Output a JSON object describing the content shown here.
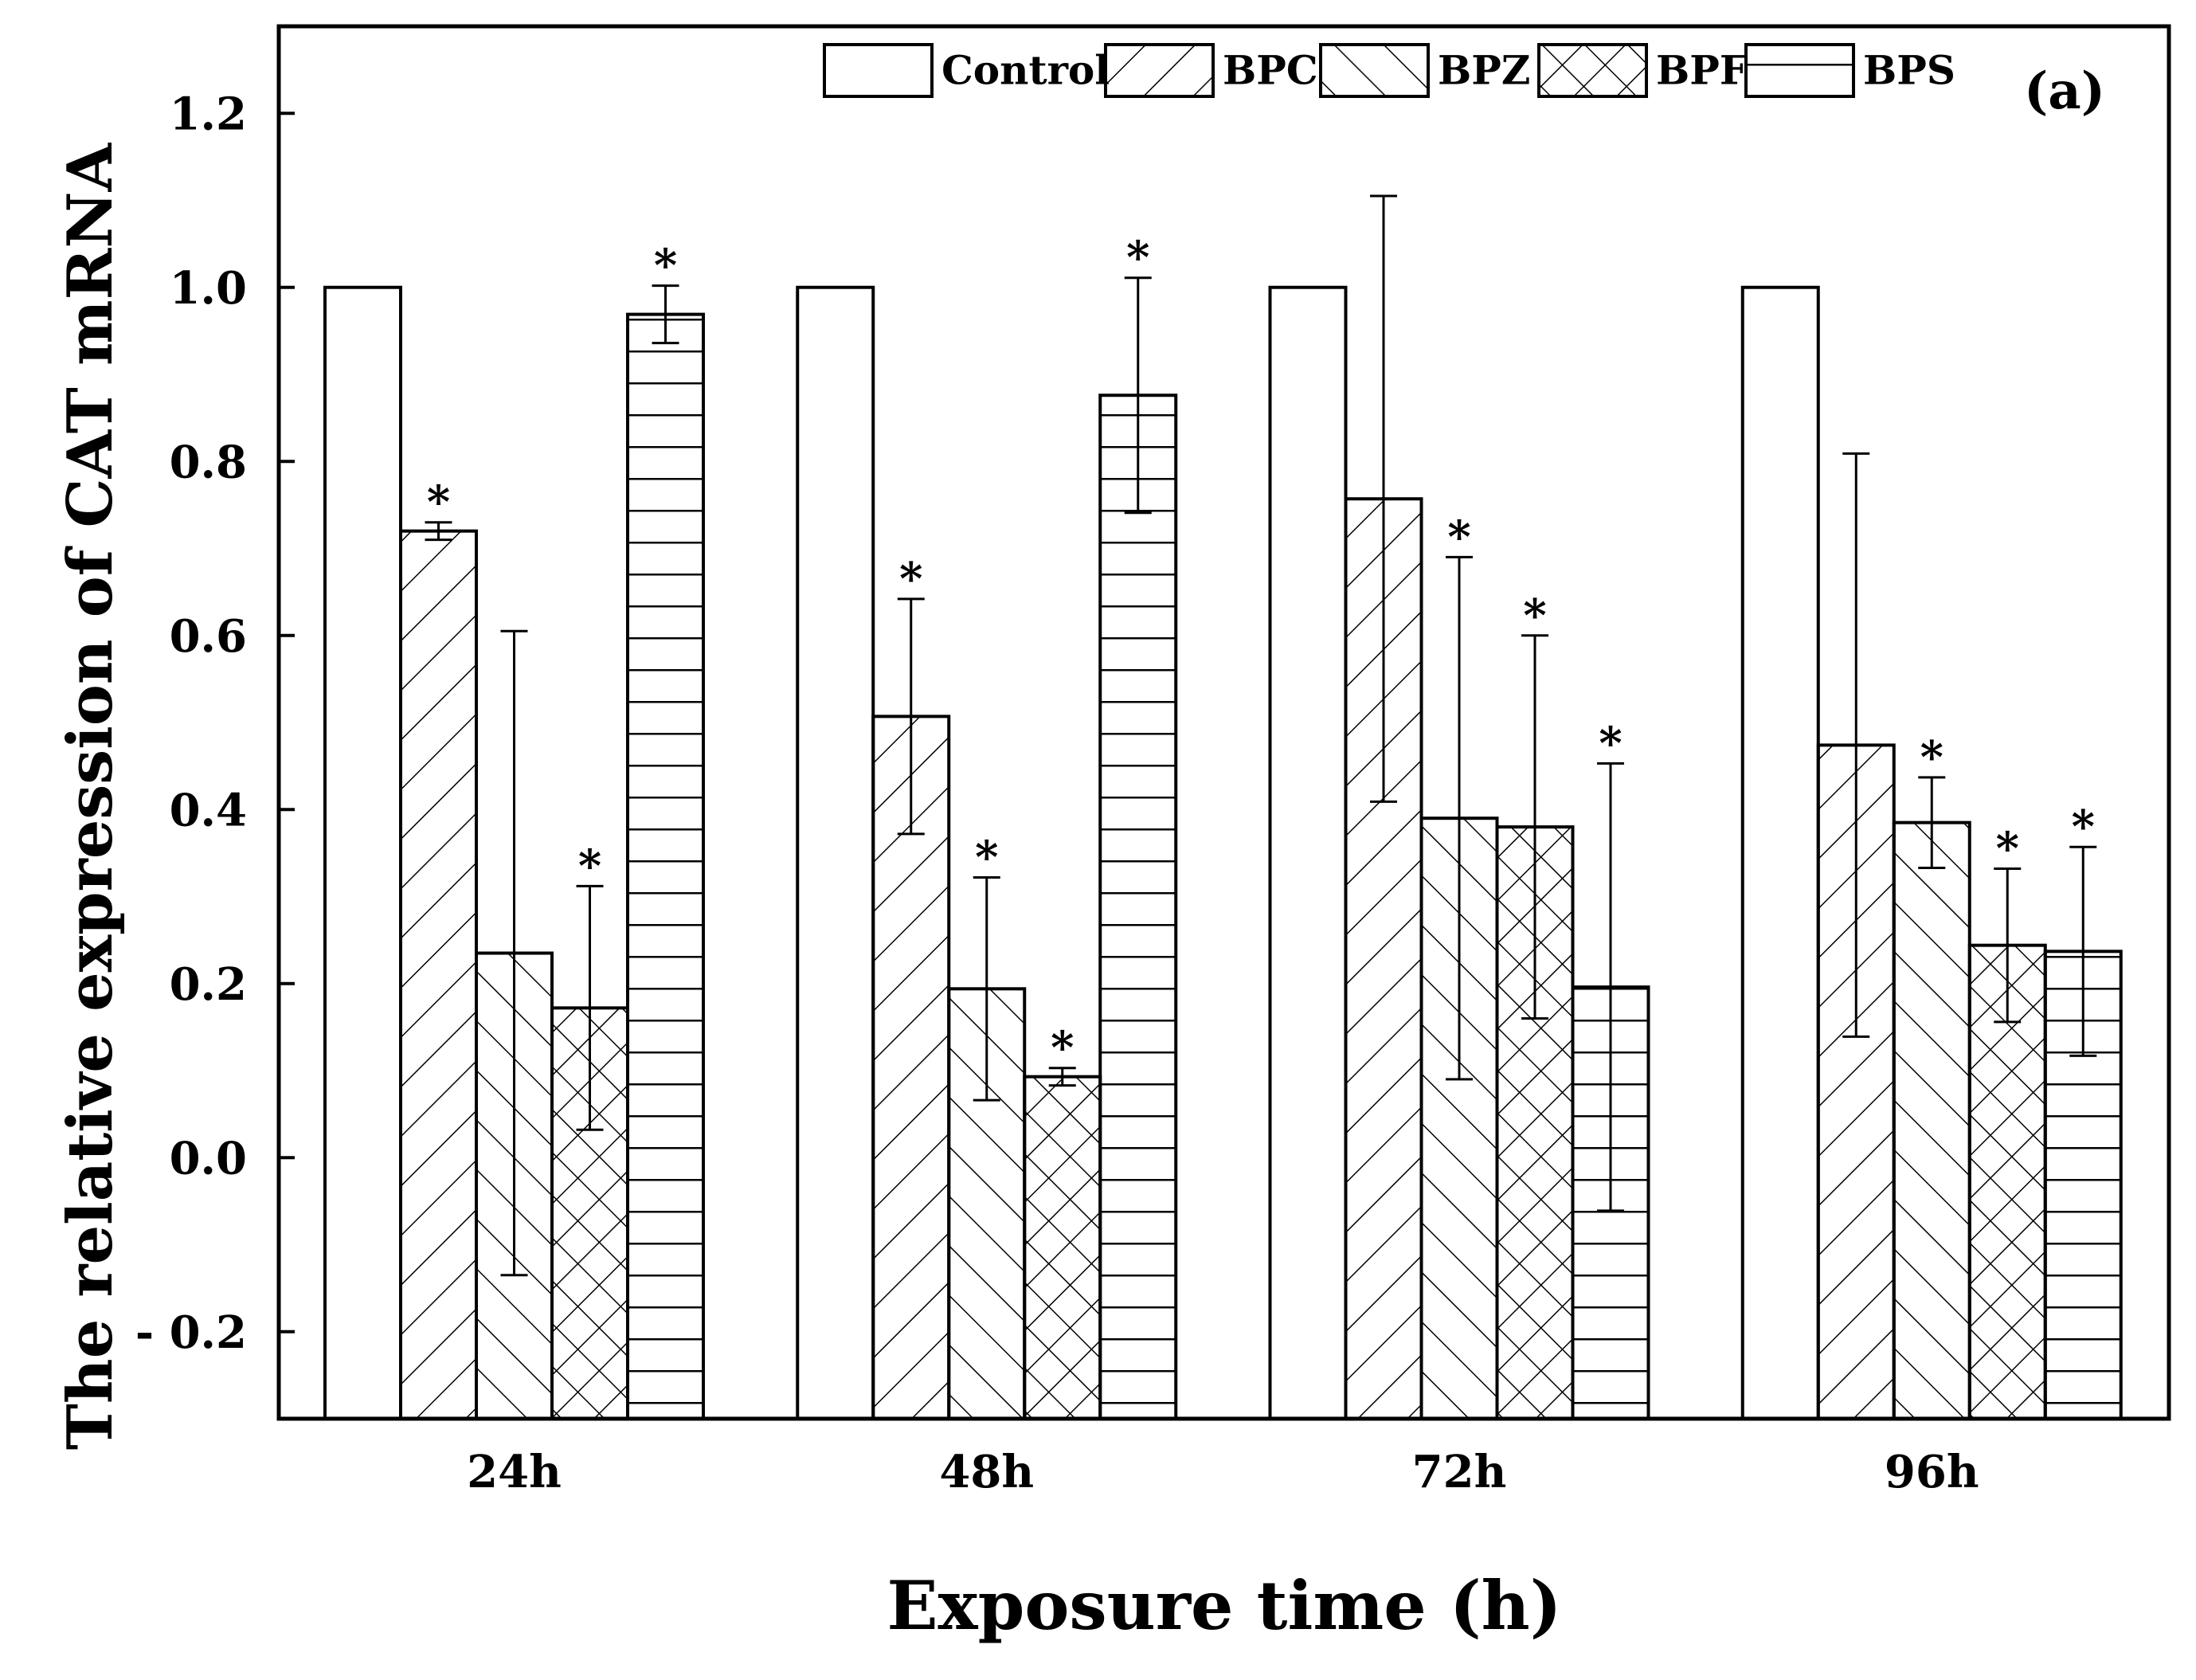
{
  "chart_data": {
    "type": "bar",
    "panel_label": "(a)",
    "xlabel": "Exposure time (h)",
    "ylabel": "The relative expression of CAT mRNA",
    "categories": [
      "24h",
      "48h",
      "72h",
      "96h"
    ],
    "ylim": [
      -0.3,
      1.3
    ],
    "yticks": [
      {
        "value": -0.2,
        "label": "- 0.2"
      },
      {
        "value": 0.0,
        "label": "0.0"
      },
      {
        "value": 0.2,
        "label": "0.2"
      },
      {
        "value": 0.4,
        "label": "0.4"
      },
      {
        "value": 0.6,
        "label": "0.6"
      },
      {
        "value": 0.8,
        "label": "0.8"
      },
      {
        "value": 1.0,
        "label": "1.0"
      },
      {
        "value": 1.2,
        "label": "1.2"
      }
    ],
    "legend_position": "top",
    "series": [
      {
        "name": "Control",
        "pattern": "none",
        "values": [
          1.0,
          1.0,
          1.0,
          1.0
        ],
        "errors": [
          0,
          0,
          0,
          0
        ],
        "significant": [
          false,
          false,
          false,
          false
        ]
      },
      {
        "name": "BPC",
        "pattern": "forward-diagonal",
        "values": [
          0.72,
          0.507,
          0.757,
          0.474
        ],
        "errors": [
          0.01,
          0.135,
          0.348,
          0.335
        ],
        "significant": [
          true,
          true,
          false,
          false
        ]
      },
      {
        "name": "BPZ",
        "pattern": "back-diagonal",
        "values": [
          0.235,
          0.194,
          0.39,
          0.385
        ],
        "errors": [
          0.37,
          0.128,
          0.3,
          0.052
        ],
        "significant": [
          false,
          true,
          true,
          true
        ]
      },
      {
        "name": "BPF",
        "pattern": "crosshatch",
        "values": [
          0.172,
          0.093,
          0.38,
          0.244
        ],
        "errors": [
          0.14,
          0.01,
          0.22,
          0.088
        ],
        "significant": [
          true,
          true,
          true,
          true
        ]
      },
      {
        "name": "BPS",
        "pattern": "horizontal",
        "values": [
          0.969,
          0.876,
          0.196,
          0.237
        ],
        "errors": [
          0.033,
          0.135,
          0.257,
          0.12
        ],
        "significant": [
          true,
          true,
          true,
          true
        ]
      }
    ],
    "significance_marker": "*"
  }
}
